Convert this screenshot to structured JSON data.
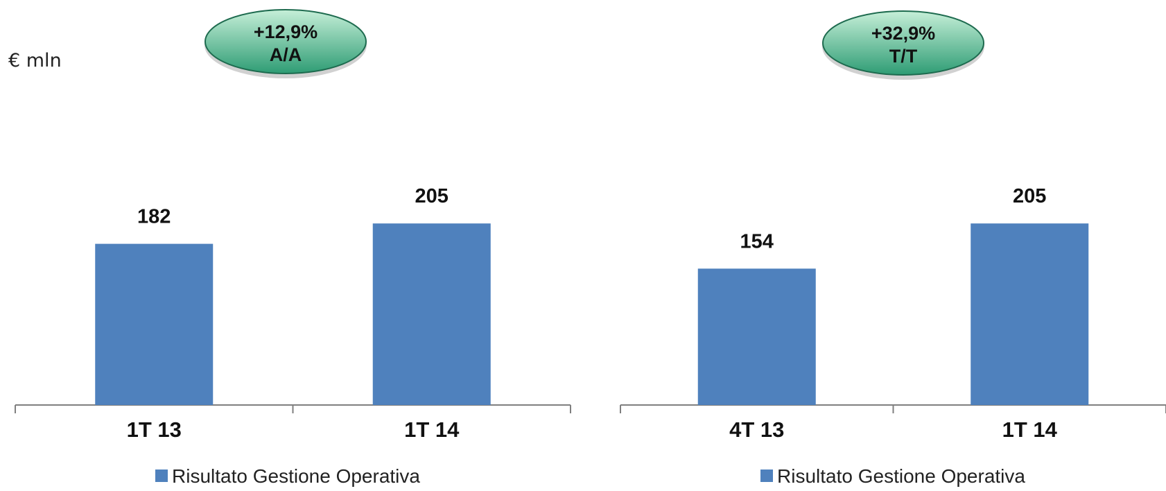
{
  "unit_label": "€ mln",
  "colors": {
    "bar": "#4F81BD",
    "axis": "#7F7F7F",
    "badge_fill_light": "#C6EFD8",
    "badge_fill_dark": "#2E9C74",
    "badge_stroke": "#1E6B4F",
    "text": "#111111"
  },
  "chart_data": [
    {
      "type": "bar",
      "categories": [
        "1T 13",
        "1T 14"
      ],
      "series": [
        {
          "name": "Risultato Gestione Operativa",
          "values": [
            182,
            205
          ]
        }
      ],
      "data_labels": [
        "182",
        "205"
      ],
      "legend": "bottom",
      "grid": false,
      "change_badge": {
        "line1": "+12,9%",
        "line2": "A/A"
      }
    },
    {
      "type": "bar",
      "categories": [
        "4T 13",
        "1T 14"
      ],
      "series": [
        {
          "name": "Risultato Gestione Operativa",
          "values": [
            154,
            205
          ]
        }
      ],
      "data_labels": [
        "154",
        "205"
      ],
      "legend": "bottom",
      "grid": false,
      "change_badge": {
        "line1": "+32,9%",
        "line2": "T/T"
      }
    }
  ]
}
